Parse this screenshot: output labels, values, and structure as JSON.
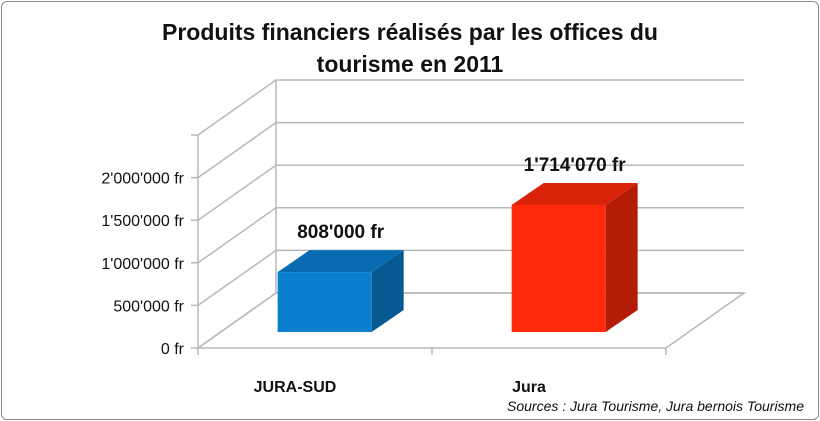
{
  "chart_data": {
    "type": "bar",
    "title_lines": [
      "Produits financiers réalisés par les offices du",
      "tourisme en 2011"
    ],
    "categories": [
      "JURA-SUD",
      "Jura"
    ],
    "values": [
      808000,
      1714070
    ],
    "data_labels": [
      "808'000 fr",
      "1'714'070 fr"
    ],
    "colors": [
      "#0a7fd0",
      "#ff2a0a"
    ],
    "y_ticks": [
      0,
      500000,
      1000000,
      1500000,
      2000000
    ],
    "y_tick_labels": [
      "0 fr",
      "500'000 fr",
      "1'000'000 fr",
      "1'500'000 fr",
      "2'000'000 fr"
    ],
    "ylim": [
      0,
      2500000
    ],
    "grid": true,
    "legend": "none",
    "source": "Sources : Jura Tourisme, Jura bernois Tourisme"
  }
}
